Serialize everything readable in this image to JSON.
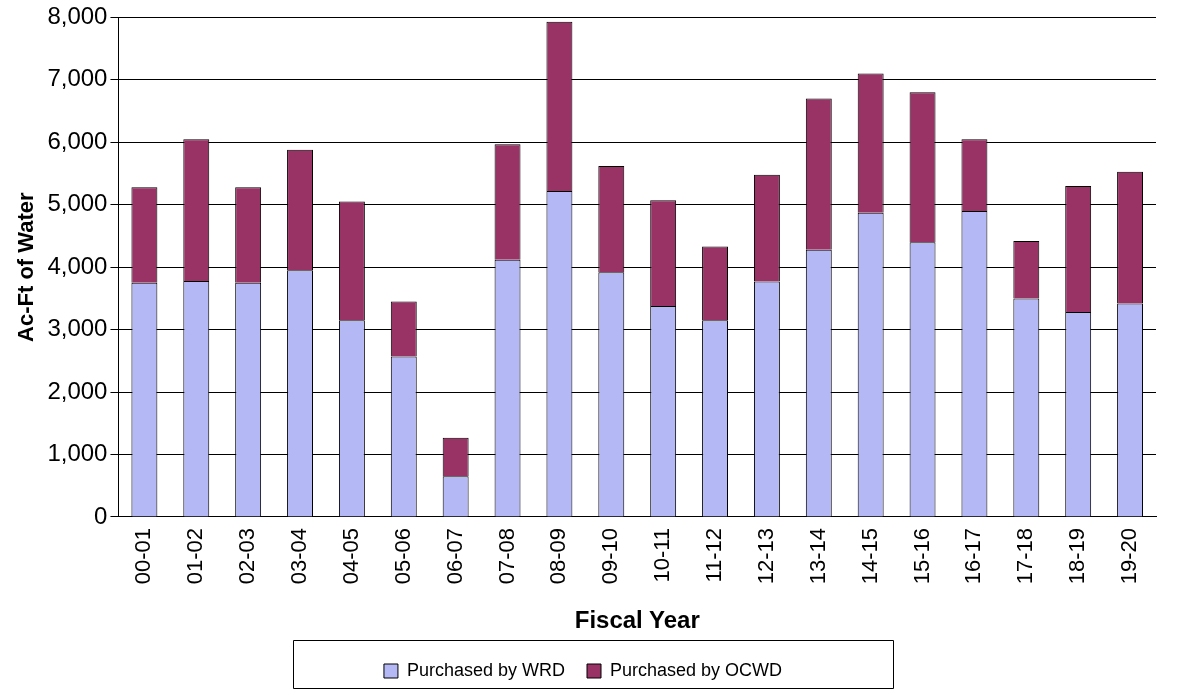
{
  "chart_data": {
    "type": "bar",
    "stacked": true,
    "xlabel": "Fiscal Year",
    "ylabel": "Ac-Ft of Water",
    "categories": [
      "00-01",
      "01-02",
      "02-03",
      "03-04",
      "04-05",
      "05-06",
      "06-07",
      "07-08",
      "08-09",
      "09-10",
      "10-11",
      "11-12",
      "12-13",
      "13-14",
      "14-15",
      "15-16",
      "16-17",
      "17-18",
      "18-19",
      "19-20"
    ],
    "series": [
      {
        "name": "Purchased by WRD",
        "color": "#b4b8f4",
        "values": [
          3750,
          3780,
          3750,
          3950,
          3150,
          2570,
          650,
          4120,
          5220,
          3920,
          3380,
          3150,
          3770,
          4280,
          4870,
          4400,
          4900,
          3500,
          3280,
          3420
        ]
      },
      {
        "name": "Purchased by OCWD",
        "color": "#993366",
        "values": [
          1530,
          2270,
          1530,
          1930,
          1900,
          880,
          620,
          1850,
          2710,
          1700,
          1690,
          1180,
          1710,
          2420,
          2230,
          2400,
          1150,
          920,
          2020,
          2110
        ]
      }
    ],
    "ylim": [
      0,
      8000
    ],
    "yticks": [
      0,
      {
        "value": 1000,
        "label": "1,000"
      },
      {
        "value": 2000,
        "label": "2,000"
      },
      {
        "value": 3000,
        "label": "3,000"
      },
      {
        "value": 4000,
        "label": "4,000"
      },
      {
        "value": 5000,
        "label": "5,000"
      },
      {
        "value": 6000,
        "label": "6,000"
      },
      {
        "value": 7000,
        "label": "7,000"
      },
      {
        "value": 8000,
        "label": "8,000"
      }
    ],
    "grid": "y",
    "legend": "bottom"
  }
}
